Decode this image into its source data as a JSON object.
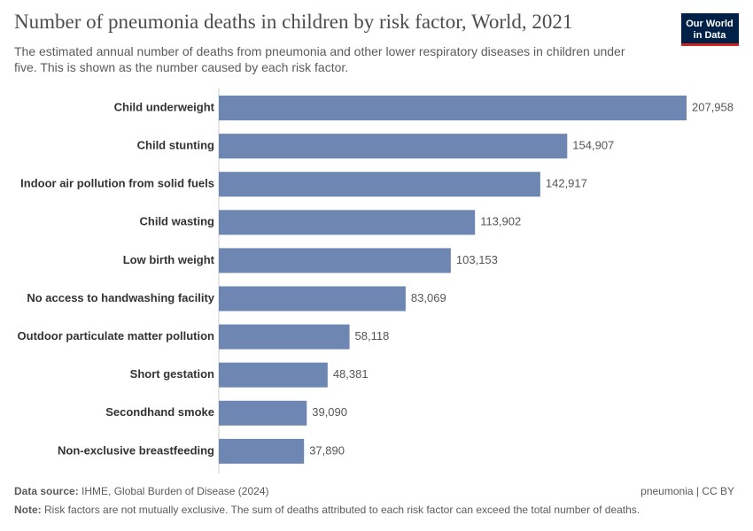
{
  "chart_data": {
    "type": "hbar",
    "title": "Number of pneumonia deaths in children by risk factor, World, 2021",
    "subtitle": "The estimated annual number of deaths from pneumonia and other lower respiratory diseases in children under five. This is shown as the number caused by each risk factor.",
    "categories": [
      "Child underweight",
      "Child stunting",
      "Indoor air pollution from solid fuels",
      "Child wasting",
      "Low birth weight",
      "No access to handwashing facility",
      "Outdoor particulate matter pollution",
      "Short gestation",
      "Secondhand smoke",
      "Non-exclusive breastfeeding"
    ],
    "values": [
      207958,
      154907,
      142917,
      113902,
      103153,
      83069,
      58118,
      48381,
      39090,
      37890
    ],
    "value_labels": [
      "207,958",
      "154,907",
      "142,917",
      "113,902",
      "103,153",
      "83,069",
      "58,118",
      "48,381",
      "39,090",
      "37,890"
    ],
    "color": "#6d87b2"
  },
  "logo": [
    "Our World",
    "in Data"
  ],
  "footer": {
    "source_label": "Data source:",
    "source": "IHME, Global Burden of Disease (2024)",
    "license": "pneumonia | CC BY",
    "note_label": "Note:",
    "note": "Risk factors are not mutually exclusive. The sum of deaths attributed to each risk factor can exceed the total number of deaths."
  }
}
